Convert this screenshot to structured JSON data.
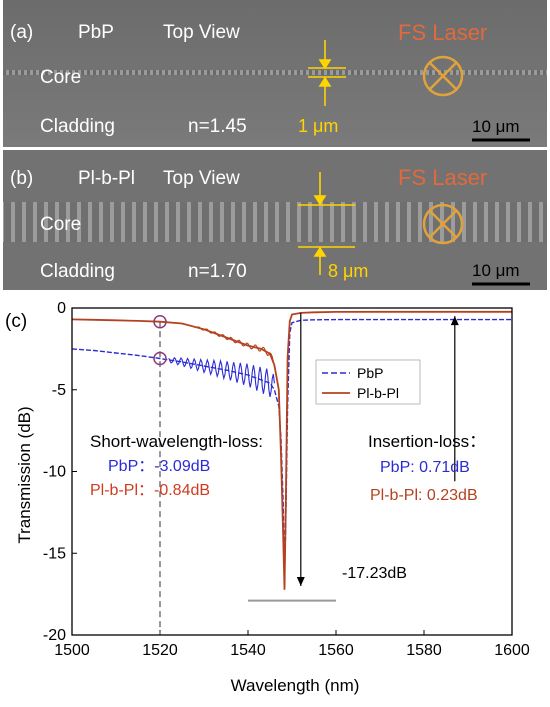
{
  "panel_a": {
    "label": "(a)",
    "fiber": "PbP",
    "view": "Top View",
    "laser": "FS Laser",
    "core": "Core",
    "cladding": "Cladding",
    "index": "n=1.45",
    "width": "1 μm",
    "scalebar": "10 μm"
  },
  "panel_b": {
    "label": "(b)",
    "fiber": "Pl-b-Pl",
    "view": "Top View",
    "laser": "FS Laser",
    "core": "Core",
    "cladding": "Cladding",
    "index": "n=1.70",
    "width": "8 μm",
    "scalebar": "10 μm"
  },
  "colors": {
    "pbp": "#2b2bd6",
    "plbpl": "#b5421f",
    "laser_text": "#e06a3c",
    "marker": "#ffd400",
    "annotation_red": "#d23a1e"
  },
  "chart_data": {
    "type": "line",
    "panel_label": "(c)",
    "xlabel": "Wavelength (nm)",
    "ylabel": "Transmission (dB)",
    "xlim": [
      1500,
      1600
    ],
    "ylim": [
      -20,
      0
    ],
    "xticks": [
      1500,
      1520,
      1540,
      1560,
      1580,
      1600
    ],
    "yticks": [
      0,
      -5,
      -10,
      -15,
      -20
    ],
    "legend_position": "top-right",
    "series": [
      {
        "name": "PbP",
        "style": "dashed",
        "x": [
          1500,
          1505,
          1510,
          1515,
          1520,
          1525,
          1530,
          1535,
          1540,
          1543,
          1545,
          1546,
          1547,
          1547.5,
          1548,
          1548.3,
          1548.6,
          1549,
          1549.5,
          1550,
          1552,
          1555,
          1560,
          1570,
          1580,
          1590,
          1600
        ],
        "y": [
          -2.5,
          -2.6,
          -2.75,
          -2.9,
          -3.09,
          -3.3,
          -3.55,
          -3.8,
          -4.1,
          -4.4,
          -4.6,
          -5.0,
          -6.0,
          -8.0,
          -12.0,
          -16.5,
          -13.0,
          -6.0,
          -1.5,
          -0.9,
          -0.75,
          -0.72,
          -0.71,
          -0.71,
          -0.71,
          -0.71,
          -0.71
        ]
      },
      {
        "name": "Pl-b-Pl",
        "style": "solid",
        "x": [
          1500,
          1505,
          1510,
          1515,
          1520,
          1525,
          1530,
          1535,
          1540,
          1543,
          1545,
          1546,
          1547,
          1547.5,
          1548,
          1548.3,
          1548.6,
          1549,
          1549.5,
          1550,
          1552,
          1555,
          1560,
          1570,
          1580,
          1590,
          1600
        ],
        "y": [
          -0.7,
          -0.72,
          -0.75,
          -0.79,
          -0.84,
          -0.95,
          -1.3,
          -1.8,
          -2.3,
          -2.5,
          -2.8,
          -3.5,
          -5.0,
          -9.0,
          -14.0,
          -17.23,
          -12.0,
          -3.0,
          -0.8,
          -0.4,
          -0.3,
          -0.26,
          -0.24,
          -0.23,
          -0.23,
          -0.23,
          -0.23
        ]
      }
    ],
    "annotations": {
      "short_title": "Short-wavelength-loss:",
      "short_pbp": "PbP：-3.09dB",
      "short_plbpl": "Pl-b-Pl：-0.84dB",
      "ins_title": "Insertion-loss：",
      "ins_pbp": "PbP: 0.71dB",
      "ins_plbpl": "Pl-b-Pl: 0.23dB",
      "min_value": "-17.23dB",
      "marker_x": 1520
    }
  }
}
